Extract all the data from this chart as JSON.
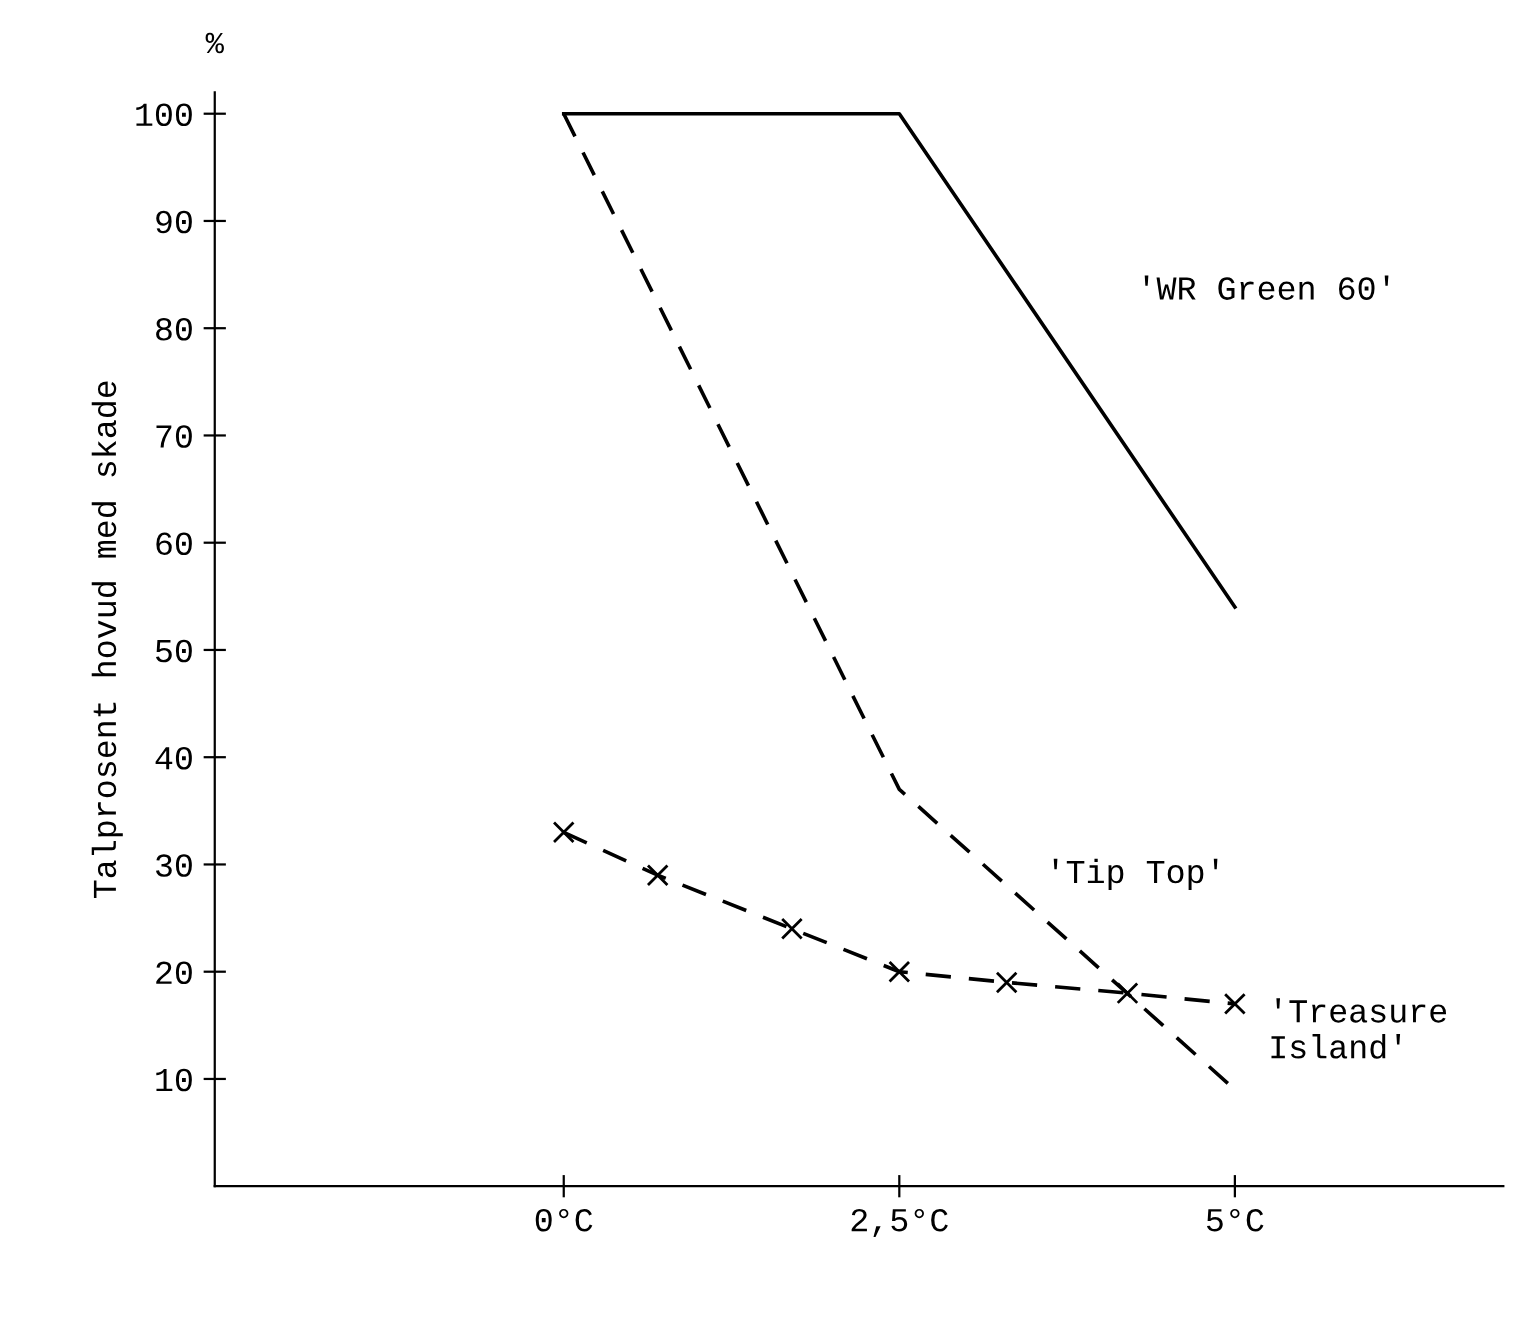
{
  "chart_data": {
    "type": "line",
    "ylabel": "Talprosent hovud med skade",
    "annotations": [
      "%"
    ],
    "xlim": [
      -2.6,
      7.0
    ],
    "ylim": [
      0,
      102
    ],
    "xticks": [
      {
        "value": 0,
        "label": "0°C"
      },
      {
        "value": 2.5,
        "label": "2,5°C"
      },
      {
        "value": 5,
        "label": "5°C"
      }
    ],
    "yticks": [
      10,
      20,
      30,
      40,
      50,
      60,
      70,
      80,
      90,
      100
    ],
    "grid": false,
    "legend": false,
    "series": [
      {
        "name": "'WR Green 60'",
        "color": "#000000",
        "line_style": "solid",
        "marker": "none",
        "x": [
          0,
          2.5,
          5
        ],
        "values": [
          100,
          100,
          54
        ]
      },
      {
        "name": "'Tip Top'",
        "color": "#000000",
        "line_style": "dashed",
        "marker": "none",
        "x": [
          0,
          2.5,
          5
        ],
        "values": [
          100,
          37,
          9
        ]
      },
      {
        "name": "'Treasure Island'",
        "color": "#000000",
        "line_style": "dashed",
        "marker": "cross",
        "x": [
          0,
          0.7,
          1.7,
          2.5,
          3.3,
          4.2,
          5
        ],
        "values": [
          33,
          29,
          24,
          20,
          19,
          18,
          17
        ]
      }
    ]
  }
}
